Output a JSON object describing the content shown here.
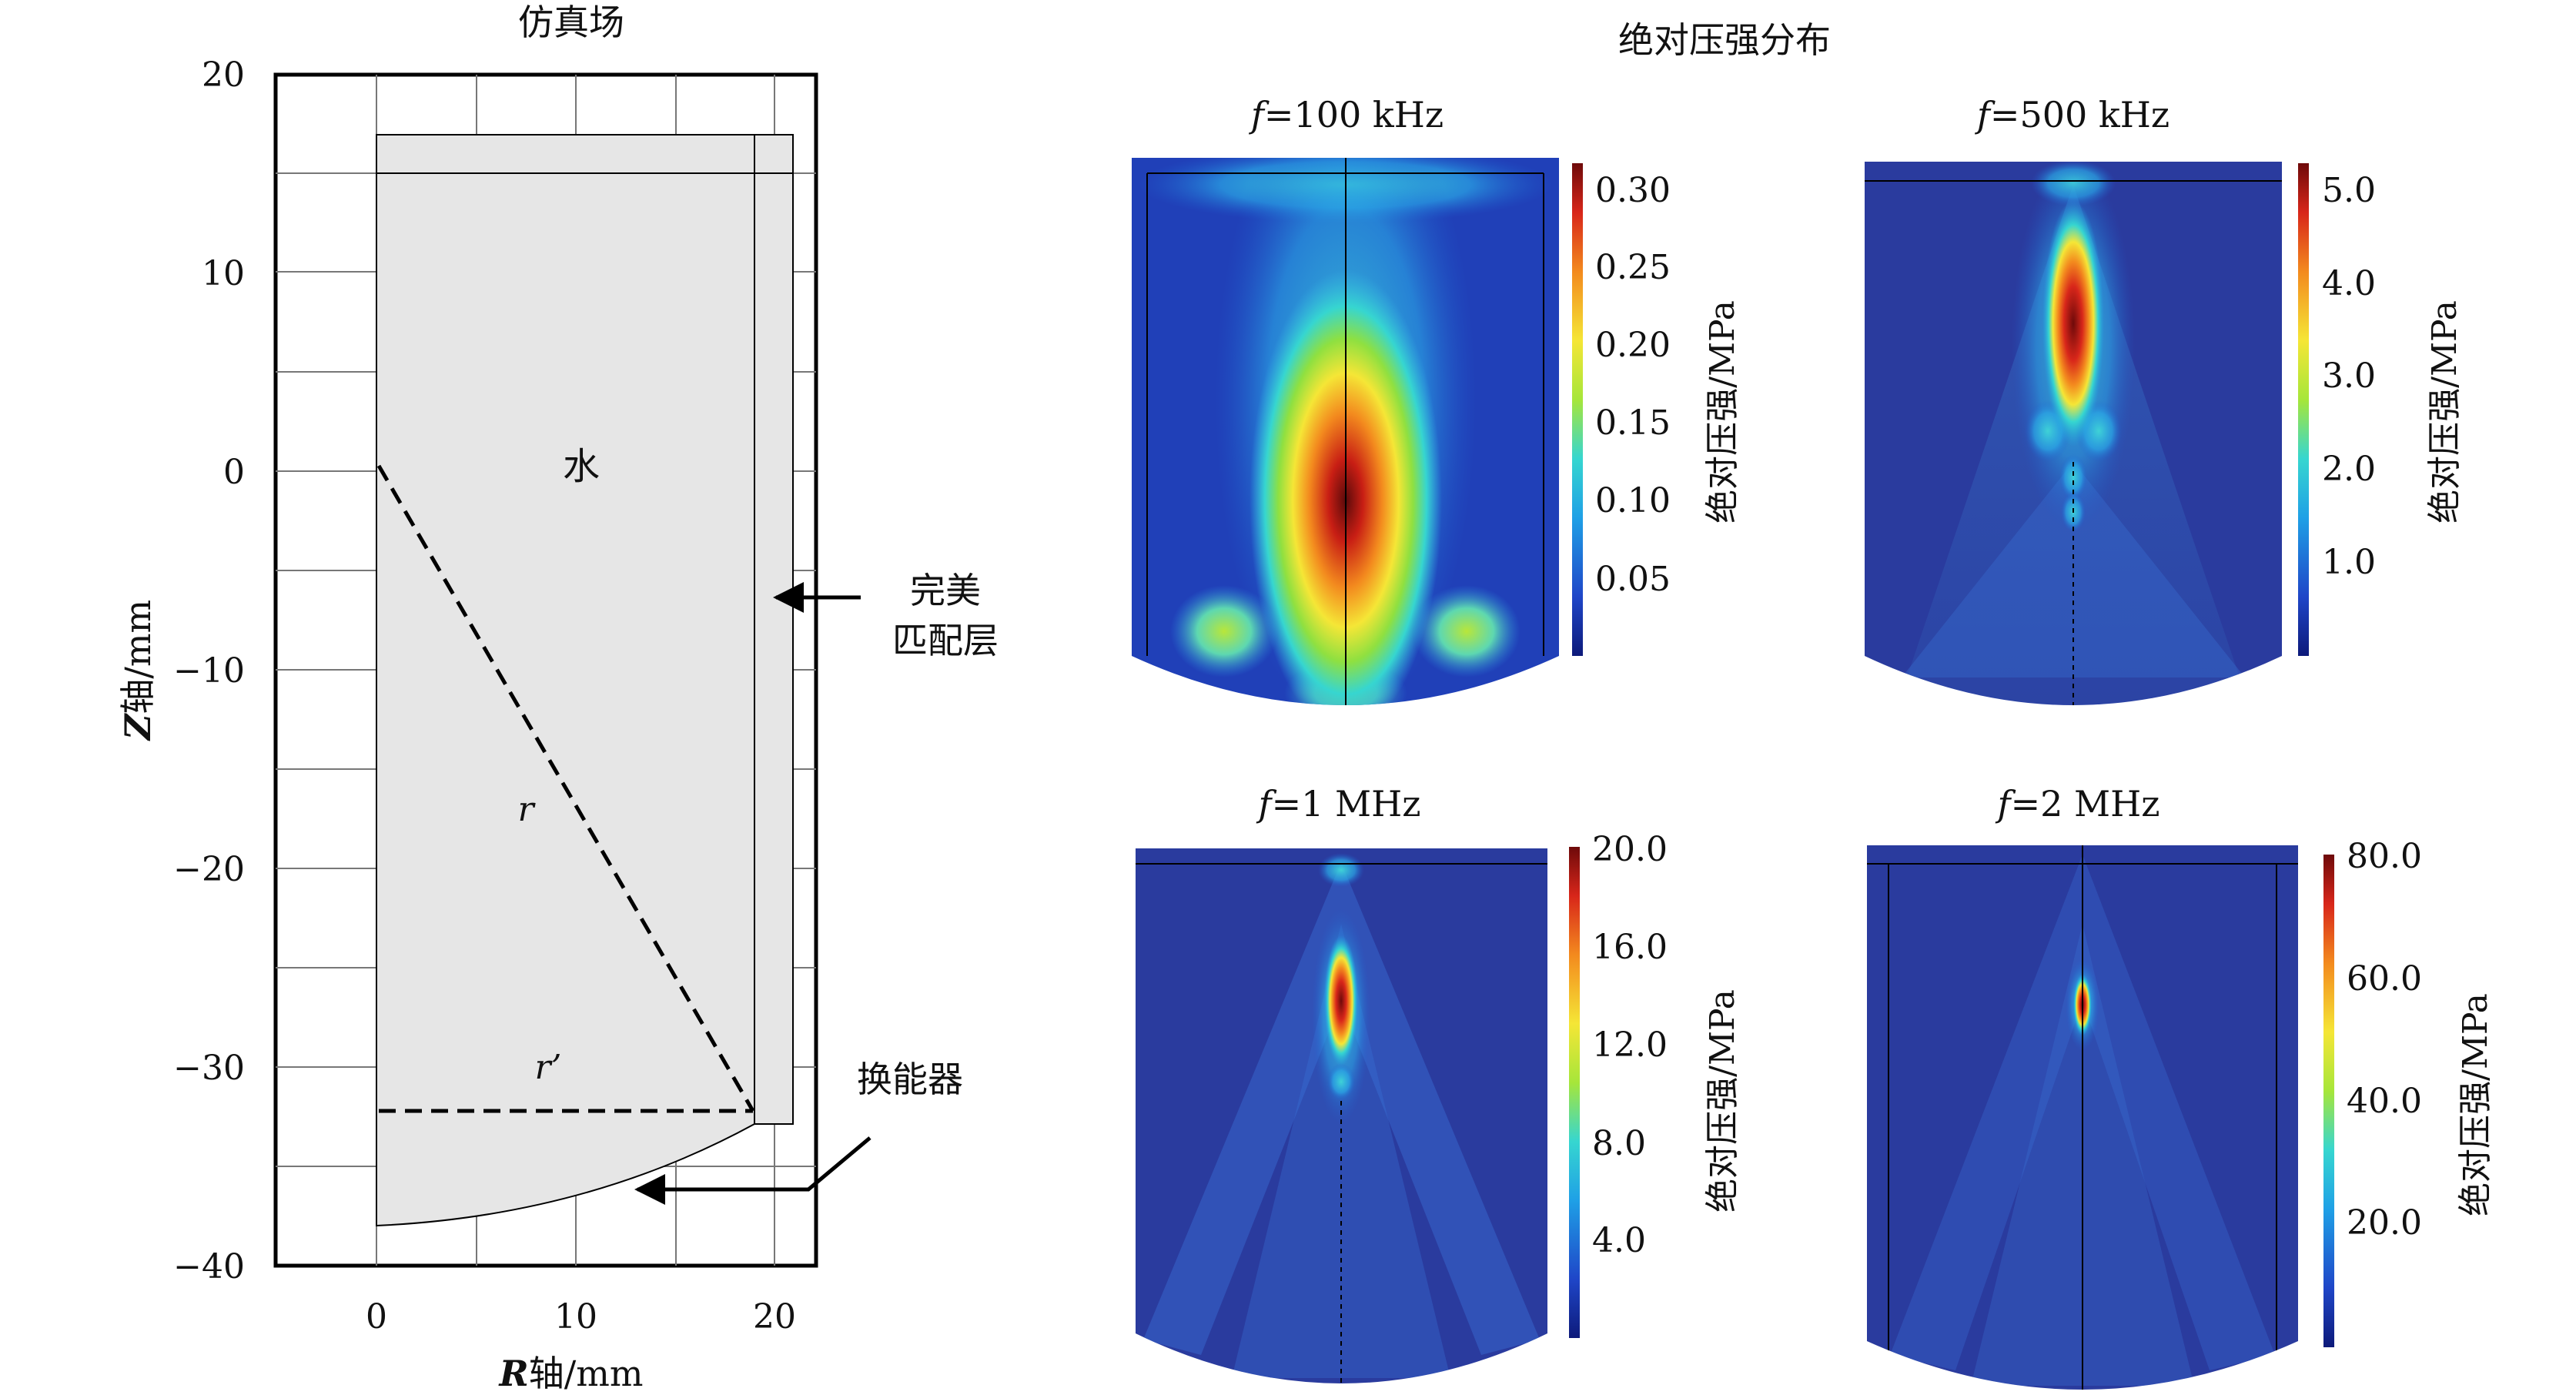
{
  "left": {
    "title": "仿真场",
    "x_ticks": [
      "0",
      "10",
      "20"
    ],
    "y_ticks": [
      "20",
      "10",
      "0",
      "−10",
      "−20",
      "−30",
      "−40"
    ],
    "x_label_bold": "R",
    "x_label_rest": "轴/mm",
    "y_label_bold": "Z",
    "y_label_rest": "轴/mm",
    "water_label": "水",
    "r_label": "r",
    "r2_label": "r’",
    "pml_label_line1": "完美",
    "pml_label_line2": "匹配层",
    "transducer_label": "换能器"
  },
  "right": {
    "title": "绝对压强分布",
    "colorbar_label": "绝对压强/MPa",
    "panels": [
      {
        "f_symbol": "f",
        "f_value": "=100 kHz",
        "ticks": [
          "0.30",
          "0.25",
          "0.20",
          "0.15",
          "0.10",
          "0.05"
        ]
      },
      {
        "f_symbol": "f",
        "f_value": "=500 kHz",
        "ticks": [
          "5.0",
          "4.0",
          "3.0",
          "2.0",
          "1.0"
        ]
      },
      {
        "f_symbol": "f",
        "f_value": "=1 MHz",
        "ticks": [
          "20.0",
          "16.0",
          "12.0",
          "8.0",
          "4.0"
        ]
      },
      {
        "f_symbol": "f",
        "f_value": "=2 MHz",
        "ticks": [
          "80.0",
          "60.0",
          "40.0",
          "20.0"
        ]
      }
    ]
  },
  "colors": {
    "jet": [
      "#0d1a7a",
      "#1f46c8",
      "#1fa0e6",
      "#36d6d0",
      "#a6e63a",
      "#f5e636",
      "#f38a1e",
      "#d8261a",
      "#6e0a0a"
    ],
    "field_bg": "#2a3b9e",
    "geometry_fill": "#e6e6e6"
  }
}
